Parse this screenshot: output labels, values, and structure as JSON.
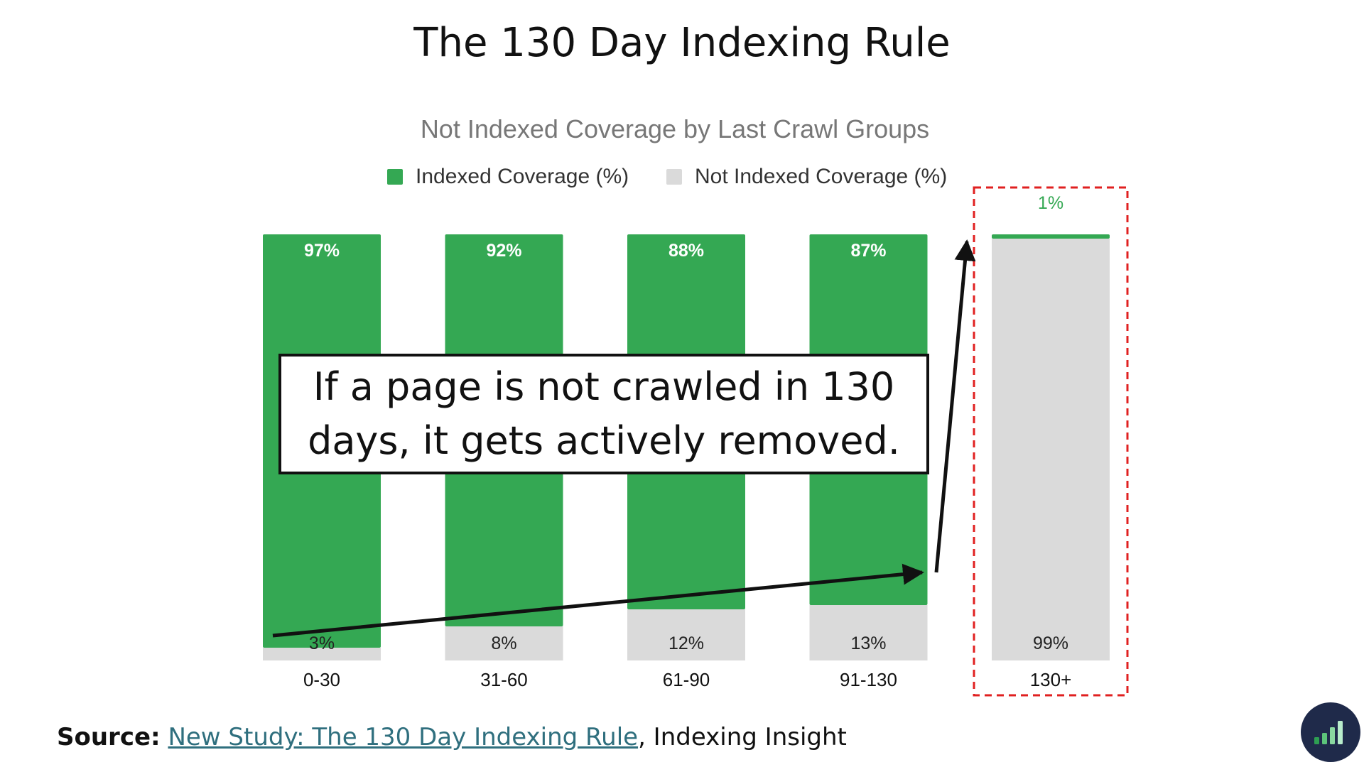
{
  "slide": {
    "title": "The 130 Day Indexing Rule",
    "callout": "If  a page is not crawled in 130 days, it gets actively removed.",
    "source_label": "Source:",
    "source_link_text": "New Study: The 130 Day Indexing Rule",
    "source_suffix": ", Indexing Insight",
    "logo_icon": "bar-chart-logo-icon"
  },
  "chart_data": {
    "type": "bar",
    "stacked": true,
    "title": "Not Indexed Coverage by Last Crawl Groups",
    "categories": [
      "0-30",
      "31-60",
      "61-90",
      "91-130",
      "130+"
    ],
    "series": [
      {
        "name": "Indexed Coverage (%)",
        "color": "#34a853",
        "values": [
          97,
          92,
          88,
          87,
          1
        ],
        "labels": [
          "97%",
          "92%",
          "88%",
          "87%",
          "1%"
        ]
      },
      {
        "name": "Not Indexed Coverage (%)",
        "color": "#dadada",
        "values": [
          3,
          8,
          12,
          13,
          99
        ],
        "labels": [
          "3%",
          "8%",
          "12%",
          "13%",
          "99%"
        ]
      }
    ],
    "ylim": [
      0,
      100
    ],
    "grid": false,
    "legend": "top-center",
    "highlight": {
      "category": "130+",
      "color": "#e02020",
      "style": "dashed"
    }
  }
}
